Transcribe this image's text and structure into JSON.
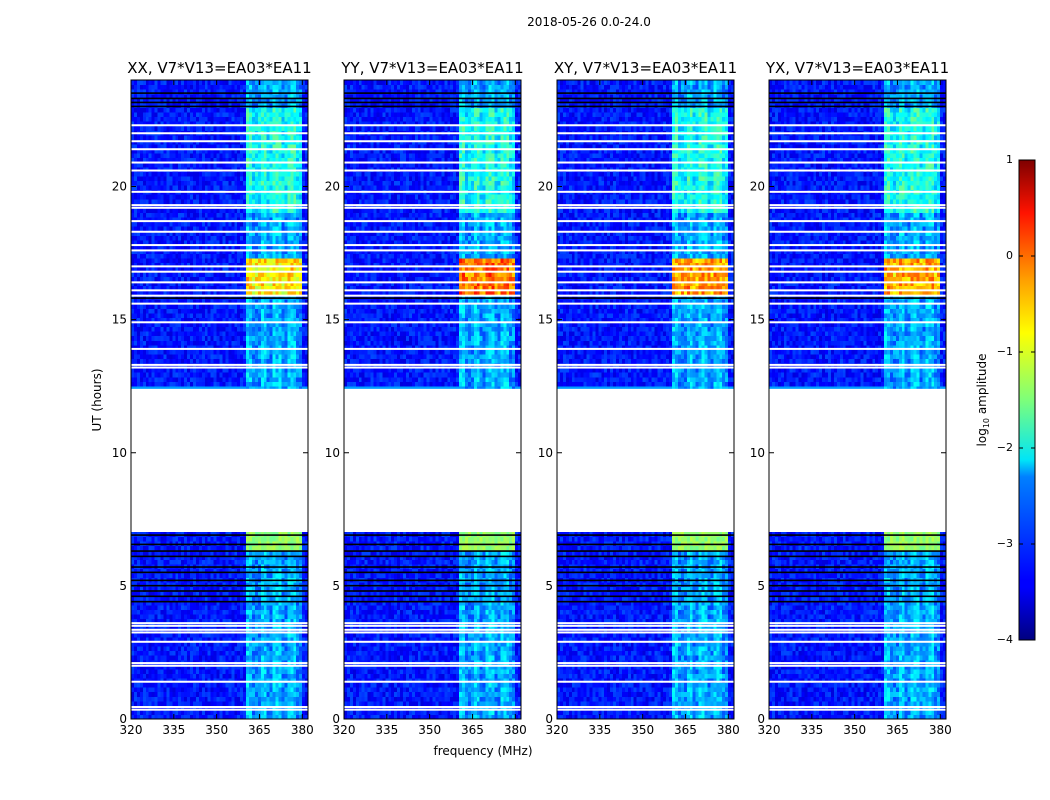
{
  "figure": {
    "suptitle": "2018-05-26 0.0-24.0"
  },
  "chart_data": {
    "type": "heatmap",
    "xlabel": "frequency (MHz)",
    "ylabel": "UT (hours)",
    "xlim": [
      320,
      382
    ],
    "ylim": [
      0,
      24
    ],
    "x_ticks": [
      320,
      335,
      350,
      365,
      380
    ],
    "y_ticks": [
      0,
      5,
      10,
      15,
      20
    ],
    "panels": [
      {
        "title": "XX, V7*V13=EA03*EA11",
        "peak_level": -0.5
      },
      {
        "title": "YY, V7*V13=EA03*EA11",
        "peak_level": 0.1
      },
      {
        "title": "XY, V7*V13=EA03*EA11",
        "peak_level": -0.1
      },
      {
        "title": "YX, V7*V13=EA03*EA11",
        "peak_level": -0.2
      }
    ],
    "rfi_band_mhz": [
      360,
      380
    ],
    "no_data_interval_hours": [
      7.1,
      12.4
    ],
    "strong_interference_hours": [
      16.0,
      17.3
    ],
    "colorbar": {
      "label": "log10 amplitude",
      "label_main": "log",
      "label_sub": "10",
      "label_rest": " amplitude",
      "range": [
        -4,
        1
      ],
      "ticks": [
        1,
        0,
        -1,
        -2,
        -3,
        -4
      ],
      "tick_labels": [
        "1",
        "0",
        "−1",
        "−2",
        "−3",
        "−4"
      ]
    }
  }
}
